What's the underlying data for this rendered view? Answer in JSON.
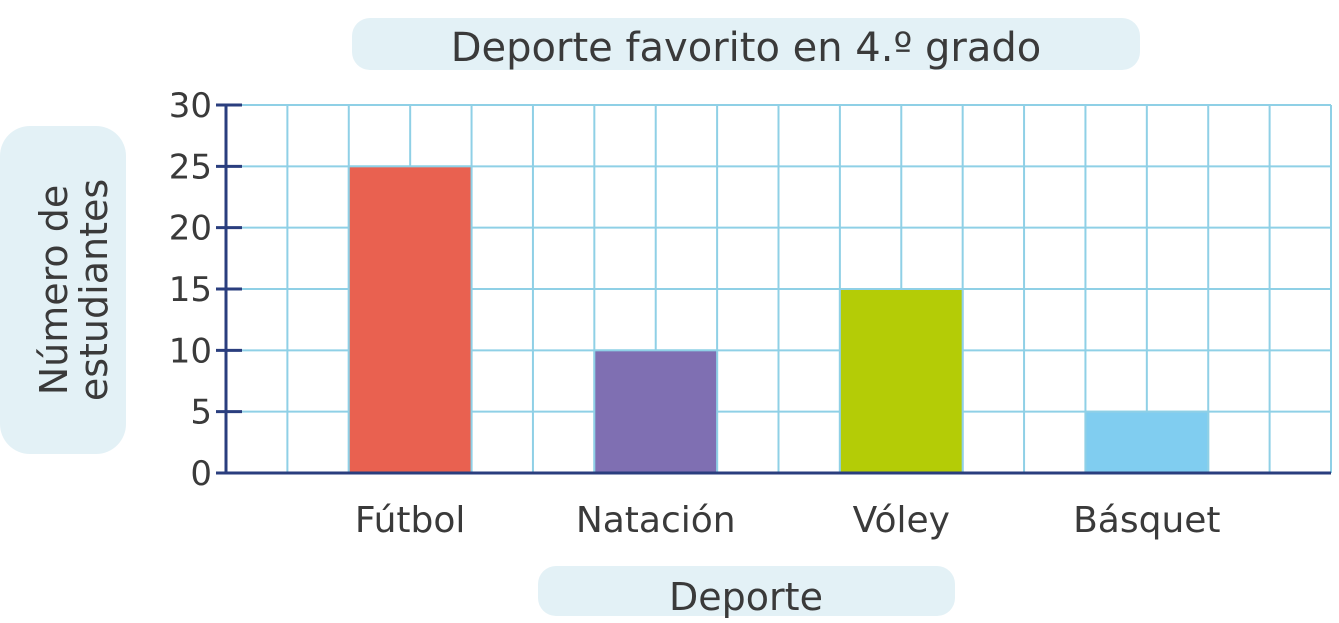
{
  "chart_data": {
    "type": "bar",
    "title": "Deporte favorito en 4.º grado",
    "xlabel": "Deporte",
    "ylabel_line1": "Número de",
    "ylabel_line2": "estudiantes",
    "categories": [
      "Fútbol",
      "Natación",
      "Vóley",
      "Básquet"
    ],
    "values": [
      25,
      10,
      15,
      5
    ],
    "colors": [
      "#e96150",
      "#7f6fb2",
      "#b4cc06",
      "#80cdf0"
    ],
    "yticks": [
      "0",
      "5",
      "10",
      "15",
      "20",
      "25",
      "30"
    ],
    "ylim": [
      0,
      30
    ],
    "grid": true,
    "legend": "none"
  }
}
